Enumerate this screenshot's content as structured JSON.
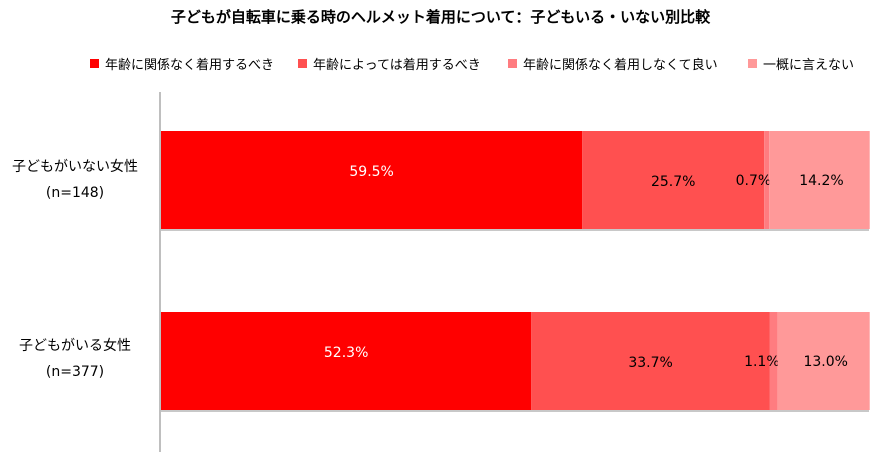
{
  "chart_data": {
    "type": "bar",
    "orientation": "horizontal",
    "stacked": true,
    "title": "子どもが自転車に乗る時のヘルメット着用について：子どもいる・いない別比較",
    "categories": [
      {
        "name": "子どもがいない女性",
        "n": "(n=148)"
      },
      {
        "name": "子どもがいる女性",
        "n": "(n=377)"
      }
    ],
    "series": [
      {
        "name": "年齢に関係なく着用するべき",
        "color": "#ff0000",
        "label_color": "#ffffff",
        "values": [
          59.5,
          52.3
        ],
        "labels": [
          "59.5%",
          "52.3%"
        ]
      },
      {
        "name": "年齢によっては着用するべき",
        "color": "#ff5050",
        "label_color": "#000000",
        "values": [
          25.7,
          33.7
        ],
        "labels": [
          "25.7%",
          "33.7%"
        ]
      },
      {
        "name": "年齢に関係なく着用しなくて良い",
        "color": "#ff7c80",
        "label_color": "#000000",
        "values": [
          0.7,
          1.1
        ],
        "labels": [
          "0.7%",
          "1.1%"
        ]
      },
      {
        "name": "一概に言えない",
        "color": "#ff9999",
        "label_color": "#000000",
        "values": [
          14.2,
          13.0
        ],
        "labels": [
          "14.2%",
          "13.0%"
        ]
      }
    ],
    "xlim": [
      0,
      100
    ],
    "legend_position": "top",
    "grid": false
  }
}
